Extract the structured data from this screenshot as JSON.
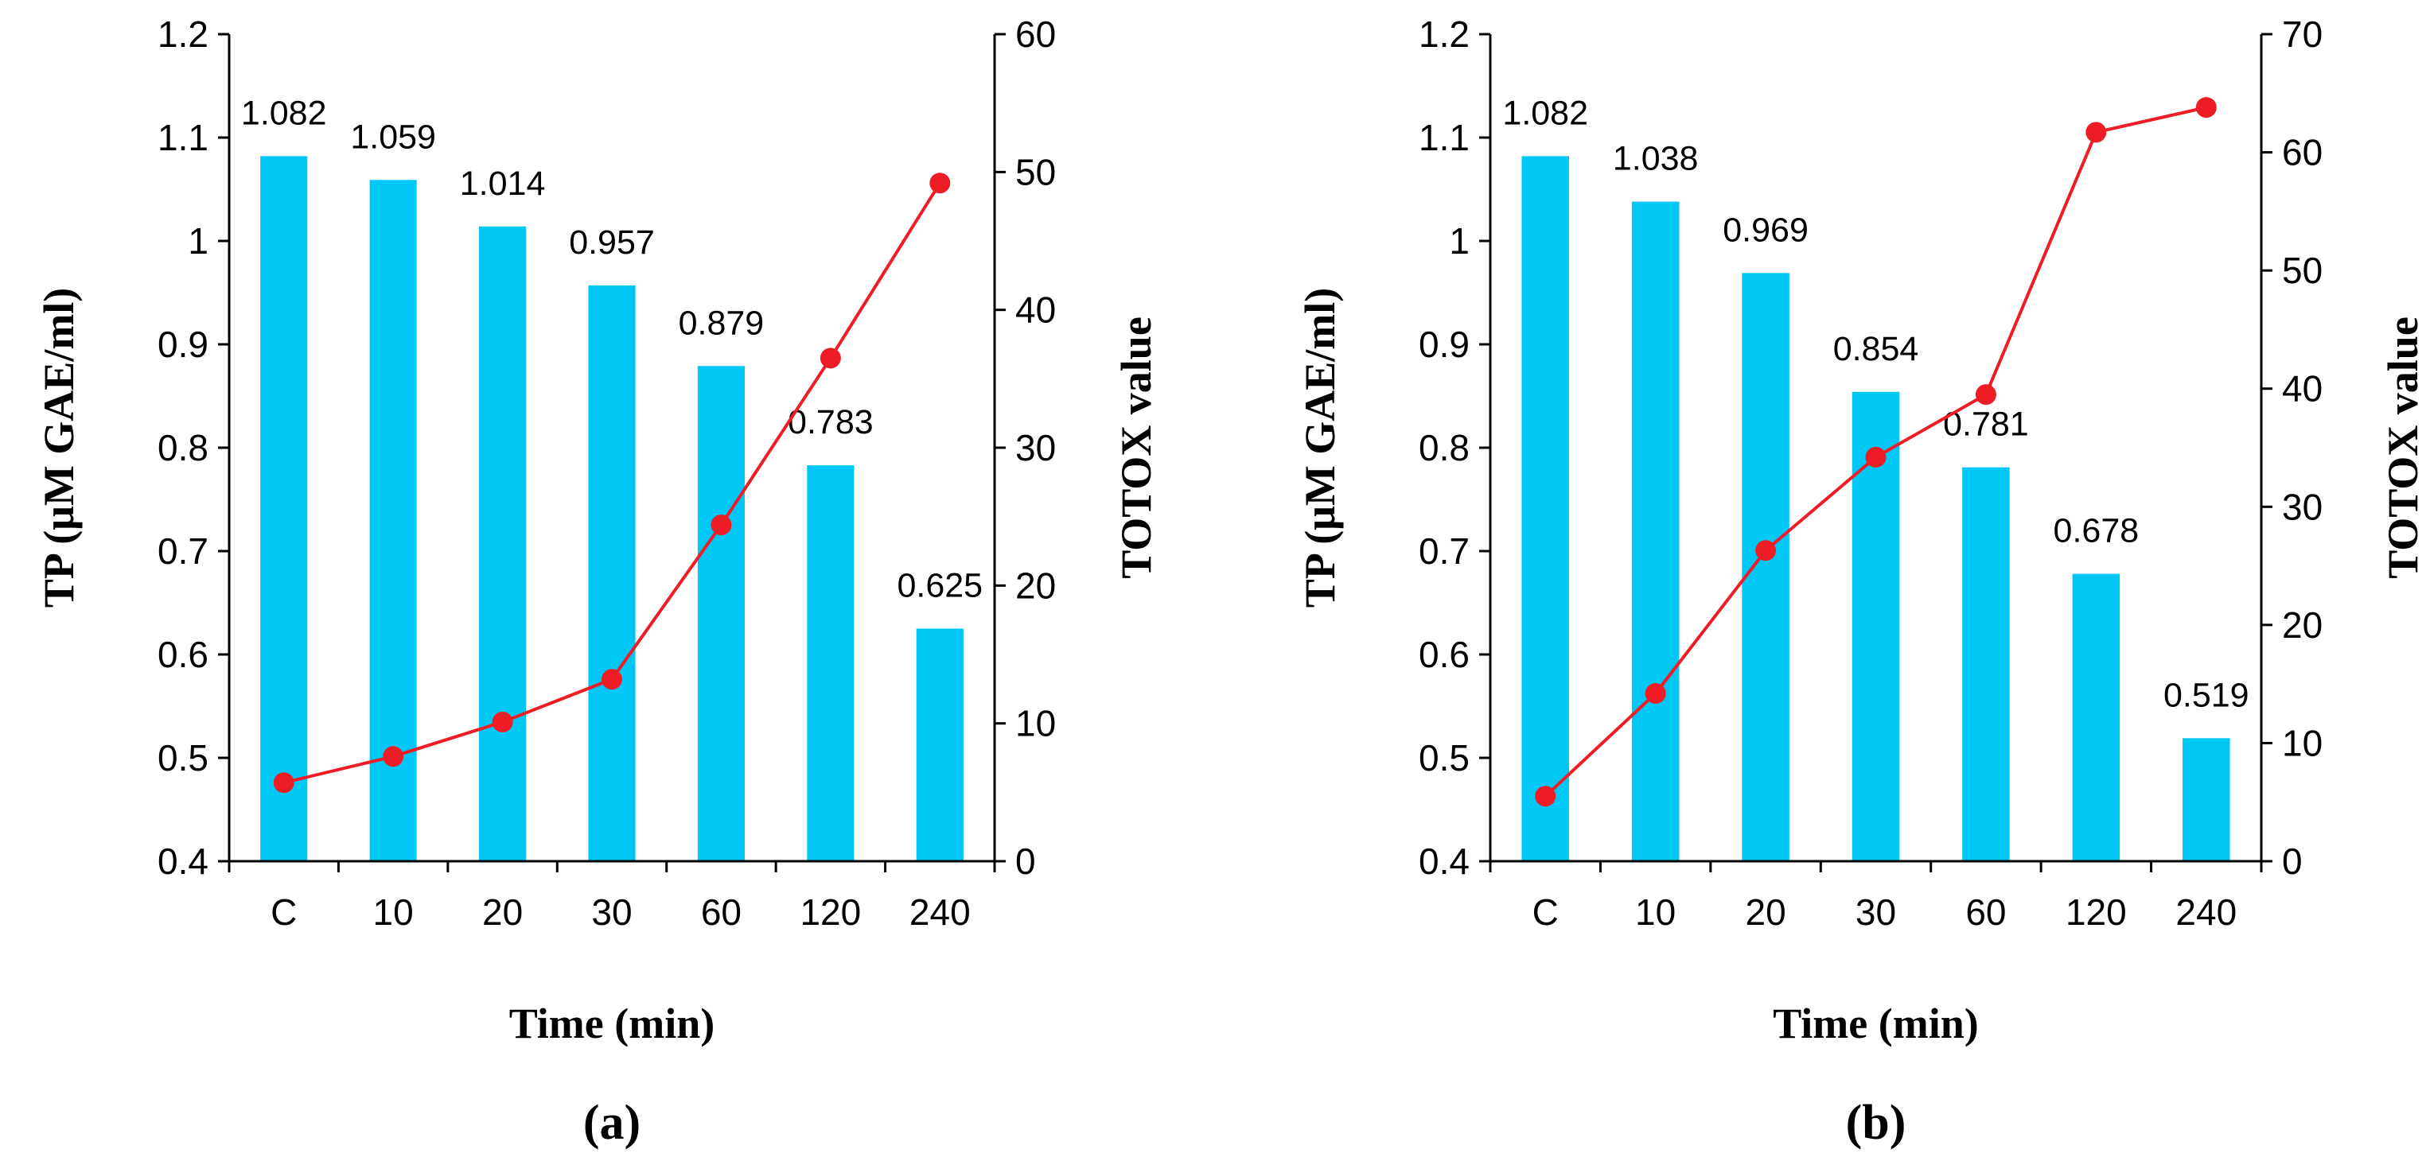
{
  "colors": {
    "bar": "#00C8F6",
    "line": "#EE1C25",
    "axis": "#000000"
  },
  "chart_data": [
    {
      "panel_label": "(a)",
      "type": "bar",
      "categories": [
        "C",
        "10",
        "20",
        "30",
        "60",
        "120",
        "240"
      ],
      "xlabel": "Time (min)",
      "ylabel": "TP (μM GAE/ml)",
      "y2label": "TOTOX value",
      "ylim": [
        0.4,
        1.2
      ],
      "yticks": [
        "0.4",
        "0.5",
        "0.6",
        "0.7",
        "0.8",
        "0.9",
        "1",
        "1.1",
        "1.2"
      ],
      "y2lim": [
        0,
        60
      ],
      "y2ticks": [
        "0",
        "10",
        "20",
        "30",
        "40",
        "50",
        "60"
      ],
      "legend": "none",
      "grid": false,
      "series": [
        {
          "axis": "left",
          "type": "bar",
          "values": [
            1.082,
            1.059,
            1.014,
            0.957,
            0.879,
            0.783,
            0.625
          ]
        },
        {
          "axis": "right",
          "type": "line",
          "values": [
            5.7,
            7.6,
            10.1,
            13.2,
            24.4,
            36.5,
            49.2
          ]
        }
      ],
      "data_labels": [
        "1.082",
        "1.059",
        "1.014",
        "0.957",
        "0.879",
        "0.783",
        "0.625"
      ]
    },
    {
      "panel_label": "(b)",
      "type": "bar",
      "categories": [
        "C",
        "10",
        "20",
        "30",
        "60",
        "120",
        "240"
      ],
      "xlabel": "Time (min)",
      "ylabel": "TP (μM GAE/ml)",
      "y2label": "TOTOX value",
      "ylim": [
        0.4,
        1.2
      ],
      "yticks": [
        "0.4",
        "0.5",
        "0.6",
        "0.7",
        "0.8",
        "0.9",
        "1",
        "1.1",
        "1.2"
      ],
      "y2lim": [
        0,
        70
      ],
      "y2ticks": [
        "0",
        "10",
        "20",
        "30",
        "40",
        "50",
        "60",
        "70"
      ],
      "legend": "none",
      "grid": false,
      "series": [
        {
          "axis": "left",
          "type": "bar",
          "values": [
            1.082,
            1.038,
            0.969,
            0.854,
            0.781,
            0.678,
            0.519
          ]
        },
        {
          "axis": "right",
          "type": "line",
          "values": [
            5.5,
            14.2,
            26.3,
            34.2,
            39.5,
            61.7,
            63.8
          ]
        }
      ],
      "data_labels": [
        "1.082",
        "1.038",
        "0.969",
        "0.854",
        "0.781",
        "0.678",
        "0.519"
      ]
    }
  ]
}
